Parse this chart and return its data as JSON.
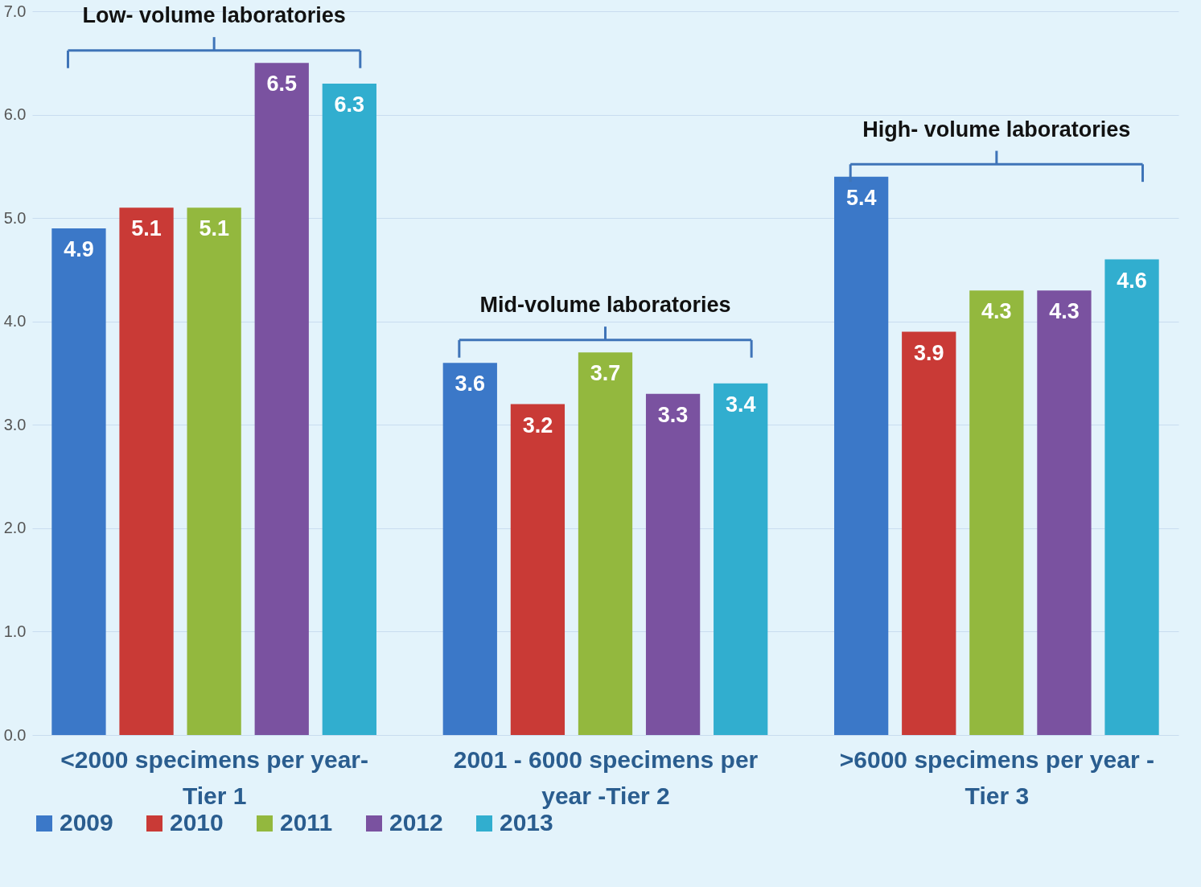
{
  "chart_data": {
    "type": "bar",
    "categories": [
      "<2000  specimens per year- Tier 1",
      "2001 - 6000 specimens per year -Tier 2",
      ">6000 specimens per year - Tier 3"
    ],
    "series": [
      {
        "name": "2009",
        "color": "#3b78c8",
        "values": [
          4.9,
          3.6,
          5.4
        ]
      },
      {
        "name": "2010",
        "color": "#c93a36",
        "values": [
          5.1,
          3.2,
          3.9
        ]
      },
      {
        "name": "2011",
        "color": "#93b83e",
        "values": [
          5.1,
          3.7,
          4.3
        ]
      },
      {
        "name": "2012",
        "color": "#7a52a0",
        "values": [
          6.5,
          3.3,
          4.3
        ]
      },
      {
        "name": "2013",
        "color": "#31aecf",
        "values": [
          6.3,
          3.4,
          4.6
        ]
      }
    ],
    "ylim": [
      0,
      7
    ],
    "yticks": [
      {
        "value": 0,
        "label": "0.0"
      },
      {
        "value": 1,
        "label": "1.0"
      },
      {
        "value": 2,
        "label": "2.0"
      },
      {
        "value": 3,
        "label": "3.0"
      },
      {
        "value": 4,
        "label": "4.0"
      },
      {
        "value": 5,
        "label": "5.0"
      },
      {
        "value": 6,
        "label": "6.0"
      },
      {
        "value": 7,
        "label": "7.0"
      }
    ],
    "annotations": [
      "Low- volume laboratories",
      "Mid-volume laboratories",
      "High- volume laboratories"
    ],
    "data_labels": true,
    "grid": "y",
    "legend": "bottom"
  }
}
